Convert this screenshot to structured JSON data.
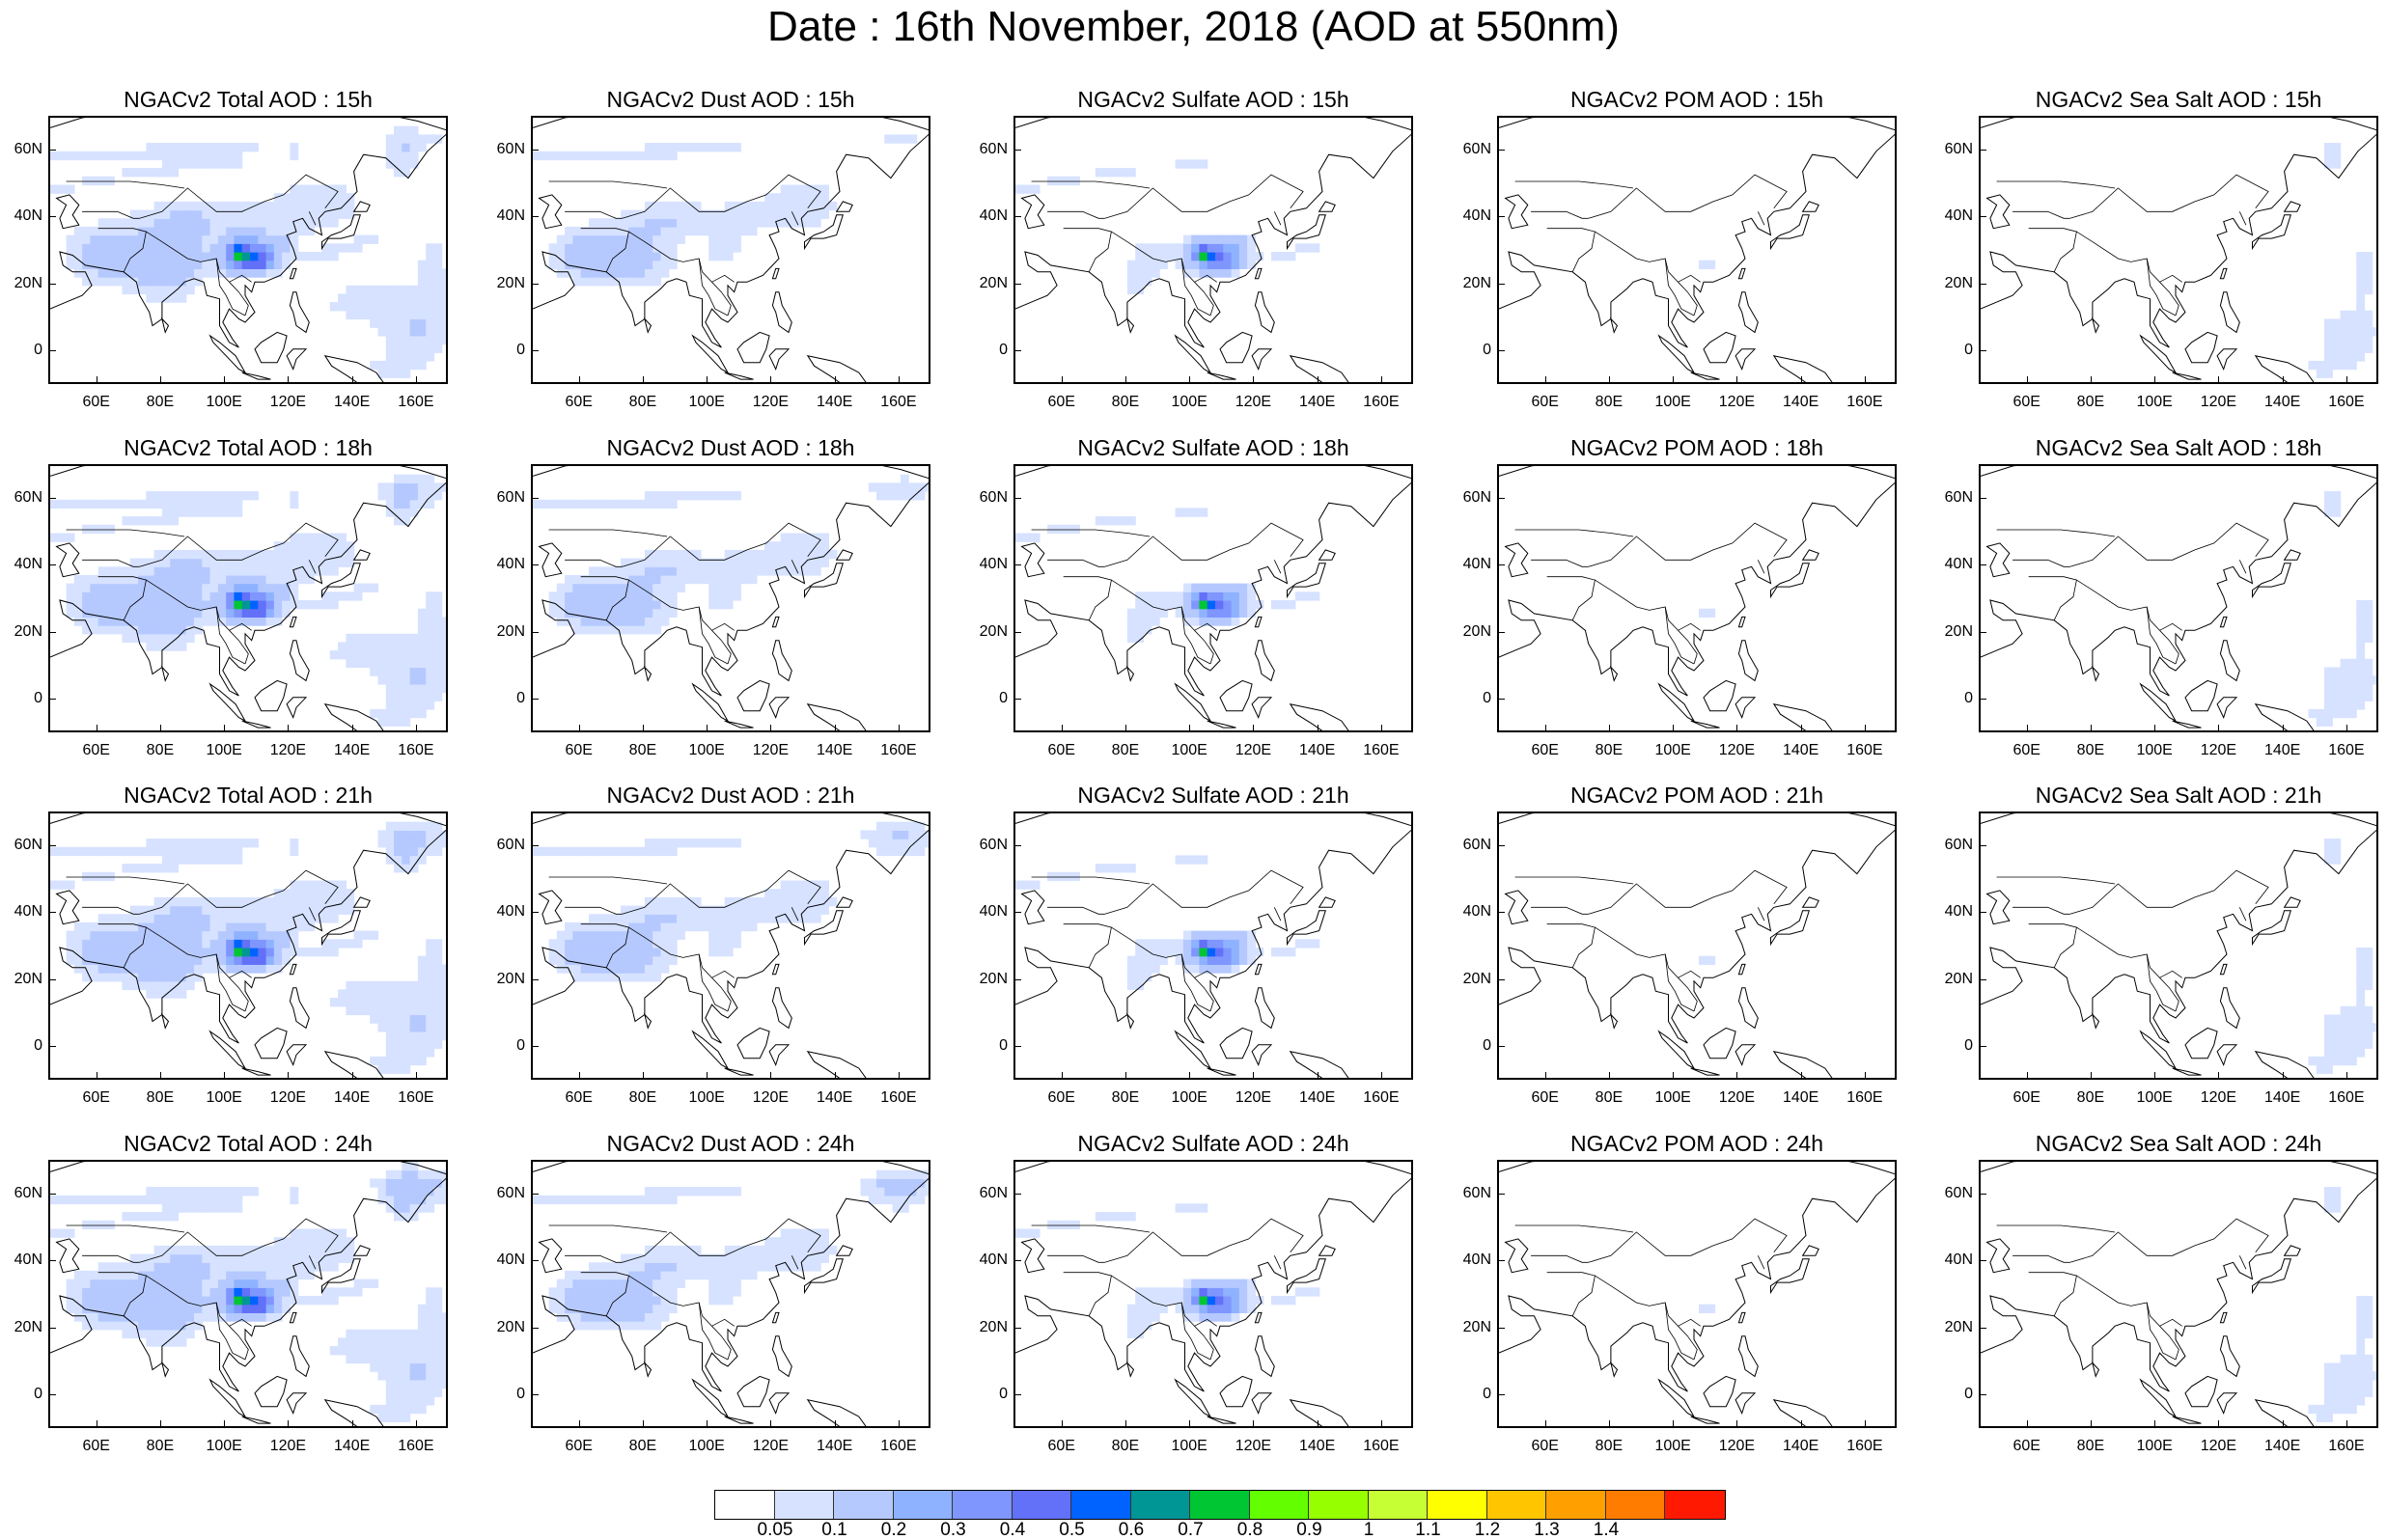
{
  "title": "Date : 16th November, 2018 (AOD at 550nm)",
  "x_ticks": [
    "60E",
    "80E",
    "100E",
    "120E",
    "140E",
    "160E"
  ],
  "y_ticks": [
    "60N",
    "40N",
    "20N",
    "0"
  ],
  "map_extent": {
    "lon": [
      45,
      170
    ],
    "lat": [
      -10,
      70
    ]
  },
  "panels": [
    {
      "title": "NGACv2 Total AOD : 15h",
      "species": "total",
      "hour": 15
    },
    {
      "title": "NGACv2 Dust AOD : 15h",
      "species": "dust",
      "hour": 15
    },
    {
      "title": "NGACv2 Sulfate AOD : 15h",
      "species": "sulfate",
      "hour": 15
    },
    {
      "title": "NGACv2 POM AOD : 15h",
      "species": "pom",
      "hour": 15
    },
    {
      "title": "NGACv2 Sea Salt AOD : 15h",
      "species": "seasalt",
      "hour": 15
    },
    {
      "title": "NGACv2 Total AOD : 18h",
      "species": "total",
      "hour": 18
    },
    {
      "title": "NGACv2 Dust AOD : 18h",
      "species": "dust",
      "hour": 18
    },
    {
      "title": "NGACv2 Sulfate AOD : 18h",
      "species": "sulfate",
      "hour": 18
    },
    {
      "title": "NGACv2 POM AOD : 18h",
      "species": "pom",
      "hour": 18
    },
    {
      "title": "NGACv2 Sea Salt AOD : 18h",
      "species": "seasalt",
      "hour": 18
    },
    {
      "title": "NGACv2 Total AOD : 21h",
      "species": "total",
      "hour": 21
    },
    {
      "title": "NGACv2 Dust AOD : 21h",
      "species": "dust",
      "hour": 21
    },
    {
      "title": "NGACv2 Sulfate AOD : 21h",
      "species": "sulfate",
      "hour": 21
    },
    {
      "title": "NGACv2 POM AOD : 21h",
      "species": "pom",
      "hour": 21
    },
    {
      "title": "NGACv2 Sea Salt AOD : 21h",
      "species": "seasalt",
      "hour": 21
    },
    {
      "title": "NGACv2 Total AOD : 24h",
      "species": "total",
      "hour": 24
    },
    {
      "title": "NGACv2 Dust AOD : 24h",
      "species": "dust",
      "hour": 24
    },
    {
      "title": "NGACv2 Sulfate AOD : 24h",
      "species": "sulfate",
      "hour": 24
    },
    {
      "title": "NGACv2 POM AOD : 24h",
      "species": "pom",
      "hour": 24
    },
    {
      "title": "NGACv2 Sea Salt  AOD : 24h",
      "species": "seasalt",
      "hour": 24
    }
  ],
  "colorbar": {
    "colors": [
      "#ffffff",
      "#d6e2ff",
      "#b5c9ff",
      "#8eb2ff",
      "#7f96ff",
      "#6370f8",
      "#0063ff",
      "#009696",
      "#00c633",
      "#63ff00",
      "#96ff00",
      "#c6ff33",
      "#ffff00",
      "#ffc600",
      "#ffa000",
      "#ff7c00",
      "#ff1900"
    ],
    "labels": [
      "0.05",
      "0.1",
      "0.2",
      "0.3",
      "0.4",
      "0.5",
      "0.6",
      "0.7",
      "0.8",
      "0.9",
      "1",
      "1.1",
      "1.2",
      "1.3",
      "1.4"
    ]
  }
}
